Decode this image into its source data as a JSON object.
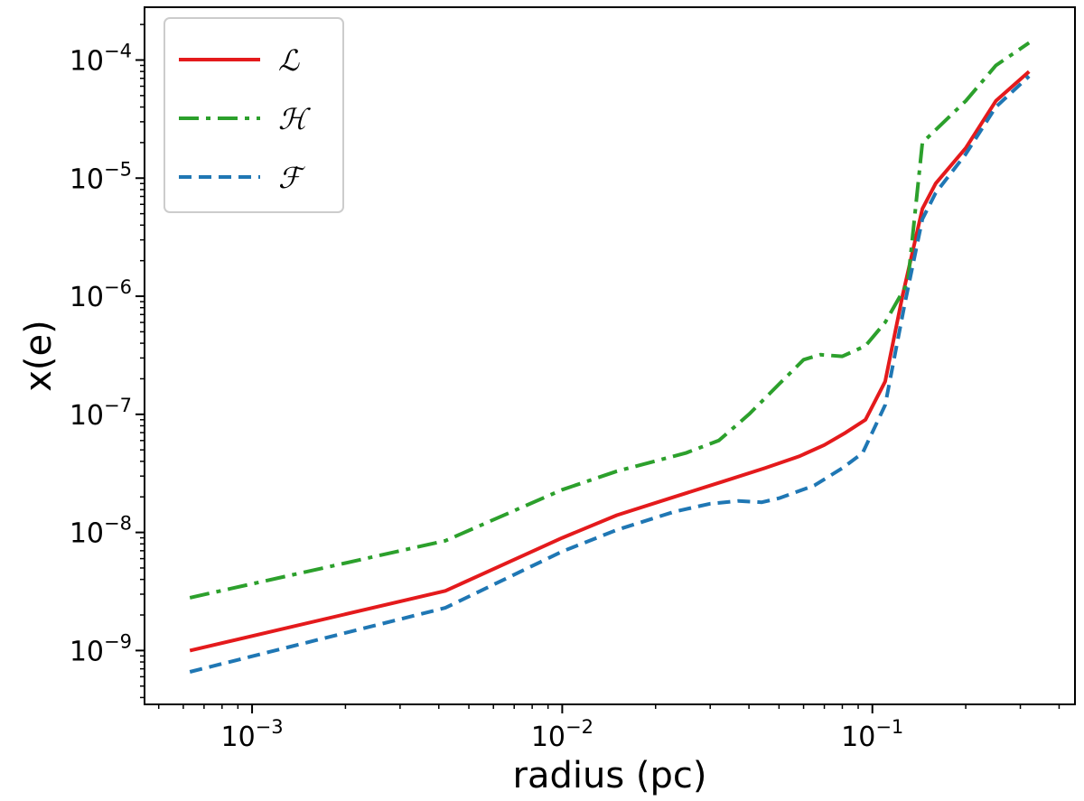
{
  "chart_data": {
    "type": "line",
    "xlabel": "radius (pc)",
    "ylabel": "x(e)",
    "xscale": "log",
    "yscale": "log",
    "xlim": [
      0.00045,
      0.45
    ],
    "ylim": [
      3.5e-10,
      0.00028
    ],
    "grid": false,
    "legend_position": "upper-left",
    "x_ticks": [
      {
        "base": "10",
        "exp": "−3",
        "value": 0.001
      },
      {
        "base": "10",
        "exp": "−2",
        "value": 0.01
      },
      {
        "base": "10",
        "exp": "−1",
        "value": 0.1
      }
    ],
    "y_ticks": [
      {
        "base": "10",
        "exp": "−9",
        "value": 1e-09
      },
      {
        "base": "10",
        "exp": "−8",
        "value": 1e-08
      },
      {
        "base": "10",
        "exp": "−7",
        "value": 1e-07
      },
      {
        "base": "10",
        "exp": "−6",
        "value": 1e-06
      },
      {
        "base": "10",
        "exp": "−5",
        "value": 1e-05
      },
      {
        "base": "10",
        "exp": "−4",
        "value": 0.0001
      }
    ],
    "series": [
      {
        "name": "ℒ",
        "color": "#e41a1c",
        "dash": "solid",
        "points": [
          [
            0.00063,
            1e-09
          ],
          [
            0.0042,
            3.2e-09
          ],
          [
            0.01,
            9e-09
          ],
          [
            0.015,
            1.4e-08
          ],
          [
            0.023,
            2e-08
          ],
          [
            0.033,
            2.7e-08
          ],
          [
            0.045,
            3.5e-08
          ],
          [
            0.058,
            4.4e-08
          ],
          [
            0.07,
            5.5e-08
          ],
          [
            0.082,
            7e-08
          ],
          [
            0.095,
            9e-08
          ],
          [
            0.11,
            1.9e-07
          ],
          [
            0.125,
            1e-06
          ],
          [
            0.145,
            5.5e-06
          ],
          [
            0.16,
            9e-06
          ],
          [
            0.2,
            1.8e-05
          ],
          [
            0.25,
            4.5e-05
          ],
          [
            0.32,
            8e-05
          ]
        ]
      },
      {
        "name": "ℋ",
        "color": "#2ca02c",
        "dash": "dashdot",
        "points": [
          [
            0.00063,
            2.8e-09
          ],
          [
            0.0042,
            8.5e-09
          ],
          [
            0.01,
            2.3e-08
          ],
          [
            0.015,
            3.3e-08
          ],
          [
            0.025,
            4.7e-08
          ],
          [
            0.032,
            6e-08
          ],
          [
            0.04,
            1e-07
          ],
          [
            0.05,
            1.8e-07
          ],
          [
            0.06,
            2.9e-07
          ],
          [
            0.068,
            3.2e-07
          ],
          [
            0.08,
            3.1e-07
          ],
          [
            0.095,
            3.8e-07
          ],
          [
            0.11,
            6e-07
          ],
          [
            0.13,
            1.3e-06
          ],
          [
            0.145,
            2e-05
          ],
          [
            0.2,
            4.5e-05
          ],
          [
            0.25,
            9e-05
          ],
          [
            0.32,
            0.00014
          ]
        ]
      },
      {
        "name": "ℱ",
        "color": "#1f77b4",
        "dash": "dashed",
        "points": [
          [
            0.00063,
            6.6e-10
          ],
          [
            0.0042,
            2.3e-09
          ],
          [
            0.01,
            6.9e-09
          ],
          [
            0.015,
            1.05e-08
          ],
          [
            0.023,
            1.5e-08
          ],
          [
            0.03,
            1.75e-08
          ],
          [
            0.037,
            1.85e-08
          ],
          [
            0.044,
            1.8e-08
          ],
          [
            0.05,
            1.95e-08
          ],
          [
            0.065,
            2.5e-08
          ],
          [
            0.08,
            3.5e-08
          ],
          [
            0.093,
            4.7e-08
          ],
          [
            0.11,
            1.2e-07
          ],
          [
            0.127,
            8.5e-07
          ],
          [
            0.145,
            4.5e-06
          ],
          [
            0.16,
            7.5e-06
          ],
          [
            0.2,
            1.6e-05
          ],
          [
            0.25,
            4e-05
          ],
          [
            0.32,
            7.3e-05
          ]
        ]
      }
    ]
  }
}
